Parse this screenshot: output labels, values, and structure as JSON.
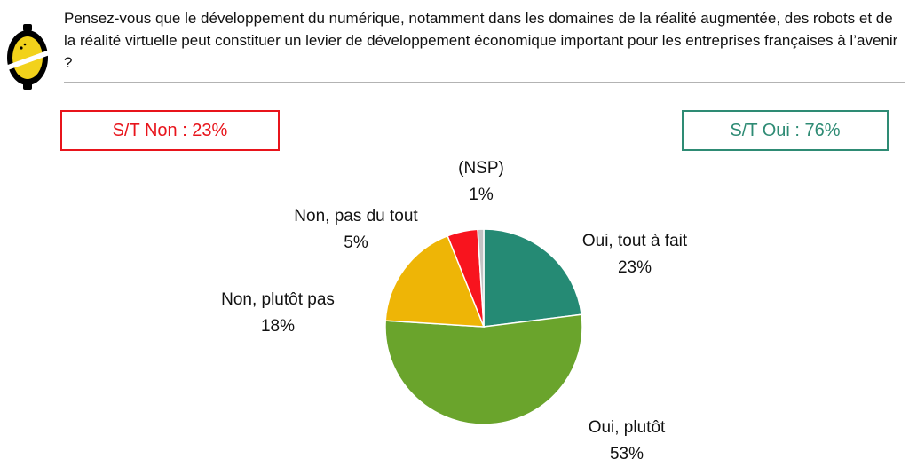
{
  "question": "Pensez-vous que le développement du numérique, notamment dans les domaines de la réalité augmentée, des robots et de la réalité virtuelle peut constituer un levier de développement économique important pour les entreprises françaises à l’avenir ?",
  "summary_non": "S/T Non : 23%",
  "summary_oui": "S/T Oui : 76%",
  "colors": {
    "non_box": "#e8141b",
    "oui_box": "#2e8b74",
    "rule": "#b3b3b3",
    "logo_yellow": "#f2d21b",
    "logo_black": "#000000"
  },
  "icons": {
    "logo": "lemon-logo-icon"
  },
  "chart_data": {
    "type": "pie",
    "start_angle_deg": 0,
    "direction": "clockwise",
    "slices": [
      {
        "label": "Oui, tout à fait",
        "value": 23,
        "display": "23%",
        "color": "#258a74"
      },
      {
        "label": "Oui, plutôt",
        "value": 53,
        "display": "53%",
        "color": "#6aa42c"
      },
      {
        "label": "Non, plutôt pas",
        "value": 18,
        "display": "18%",
        "color": "#eeb506"
      },
      {
        "label": "Non, pas du tout",
        "value": 5,
        "display": "5%",
        "color": "#f8141e"
      },
      {
        "label": "(NSP)",
        "value": 1,
        "display": "1%",
        "color": "#c3c3c3"
      }
    ]
  }
}
